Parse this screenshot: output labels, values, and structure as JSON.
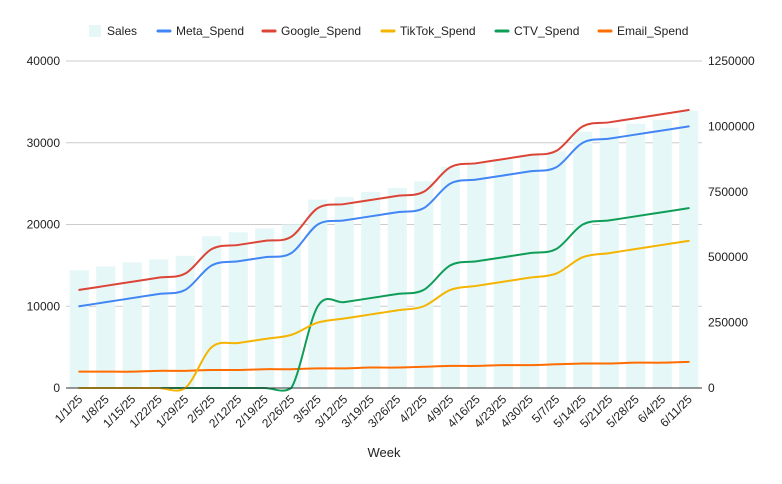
{
  "chart_data": {
    "type": "combo",
    "title": "",
    "xlabel": "Week",
    "ylabel_left": "",
    "ylabel_right": "",
    "left_ylim": [
      0,
      40000
    ],
    "left_ticks": [
      0,
      10000,
      20000,
      30000,
      40000
    ],
    "right_ylim": [
      0,
      1250000
    ],
    "right_ticks": [
      0,
      250000,
      500000,
      750000,
      1000000,
      1250000
    ],
    "grid": true,
    "legend_position": "top",
    "categories": [
      "1/1/25",
      "1/8/25",
      "1/15/25",
      "1/22/25",
      "1/29/25",
      "2/5/25",
      "2/12/25",
      "2/19/25",
      "2/26/25",
      "3/5/25",
      "3/12/25",
      "3/19/25",
      "3/26/25",
      "4/2/25",
      "4/9/25",
      "4/16/25",
      "4/23/25",
      "4/30/25",
      "5/7/25",
      "5/14/25",
      "5/21/25",
      "5/28/25",
      "6/4/25",
      "6/11/25"
    ],
    "bar_series": {
      "name": "Sales",
      "axis": "right",
      "color": "#e6f7f7",
      "values": [
        450000,
        465000,
        480000,
        492000,
        505000,
        580000,
        595000,
        610000,
        625000,
        720000,
        730000,
        750000,
        765000,
        790000,
        845000,
        860000,
        875000,
        890000,
        905000,
        980000,
        995000,
        1010000,
        1025000,
        1060000
      ]
    },
    "series": [
      {
        "name": "Meta_Spend",
        "axis": "left",
        "color": "#4285f4",
        "values": [
          10000,
          10500,
          11000,
          11500,
          12000,
          15000,
          15500,
          16000,
          16500,
          20000,
          20500,
          21000,
          21500,
          22000,
          25000,
          25500,
          26000,
          26500,
          27000,
          30000,
          30500,
          31000,
          31500,
          32000
        ]
      },
      {
        "name": "Google_Spend",
        "axis": "left",
        "color": "#db4437",
        "values": [
          12000,
          12500,
          13000,
          13500,
          14000,
          17000,
          17500,
          18000,
          18500,
          22000,
          22500,
          23000,
          23500,
          24000,
          27000,
          27500,
          28000,
          28500,
          29000,
          32000,
          32500,
          33000,
          33500,
          34000
        ]
      },
      {
        "name": "TikTok_Spend",
        "axis": "left",
        "color": "#f4b400",
        "values": [
          0,
          0,
          0,
          0,
          0,
          5000,
          5500,
          6000,
          6500,
          8000,
          8500,
          9000,
          9500,
          10000,
          12000,
          12500,
          13000,
          13500,
          14000,
          16000,
          16500,
          17000,
          17500,
          18000
        ]
      },
      {
        "name": "CTV_Spend",
        "axis": "left",
        "color": "#0f9d58",
        "values": [
          0,
          0,
          0,
          0,
          0,
          0,
          0,
          0,
          0,
          10000,
          10500,
          11000,
          11500,
          12000,
          15000,
          15500,
          16000,
          16500,
          17000,
          20000,
          20500,
          21000,
          21500,
          22000
        ]
      },
      {
        "name": "Email_Spend",
        "axis": "left",
        "color": "#ff6d01",
        "values": [
          2000,
          2000,
          2000,
          2100,
          2100,
          2200,
          2200,
          2300,
          2300,
          2400,
          2400,
          2500,
          2500,
          2600,
          2700,
          2700,
          2800,
          2800,
          2900,
          3000,
          3000,
          3100,
          3100,
          3200
        ]
      }
    ]
  }
}
